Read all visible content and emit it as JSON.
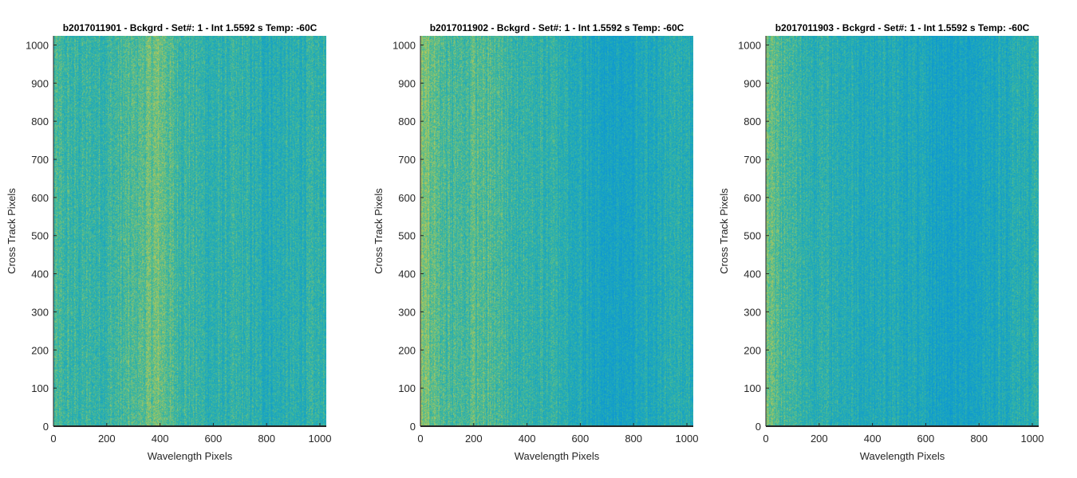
{
  "chart_data": [
    {
      "type": "heatmap",
      "title": "b2017011901 - Bckgrd - Set#: 1 - Int 1.5592 s Temp: -60C",
      "xlabel": "Wavelength Pixels",
      "ylabel": "Cross Track Pixels",
      "xlim": [
        0,
        1024
      ],
      "ylim": [
        0,
        1024
      ],
      "xticks": [
        0,
        200,
        400,
        600,
        800,
        1000
      ],
      "yticks": [
        0,
        100,
        200,
        300,
        400,
        500,
        600,
        700,
        800,
        900,
        1000
      ],
      "column_profile": {
        "x": [
          0,
          40,
          100,
          200,
          300,
          380,
          410,
          450,
          520,
          600,
          700,
          800,
          900,
          1000,
          1024
        ],
        "level": [
          0.55,
          0.5,
          0.48,
          0.5,
          0.58,
          0.72,
          0.7,
          0.56,
          0.5,
          0.42,
          0.44,
          0.38,
          0.4,
          0.45,
          0.46
        ]
      }
    },
    {
      "type": "heatmap",
      "title": "b2017011902 - Bckgrd - Set#: 1 - Int 1.5592 s Temp: -60C",
      "xlabel": "Wavelength Pixels",
      "ylabel": "Cross Track Pixels",
      "xlim": [
        0,
        1024
      ],
      "ylim": [
        0,
        1024
      ],
      "xticks": [
        0,
        200,
        400,
        600,
        800,
        1000
      ],
      "yticks": [
        0,
        100,
        200,
        300,
        400,
        500,
        600,
        700,
        800,
        900,
        1000
      ],
      "column_profile": {
        "x": [
          0,
          30,
          80,
          150,
          200,
          260,
          350,
          450,
          550,
          620,
          700,
          780,
          850,
          950,
          1024
        ],
        "level": [
          0.8,
          0.72,
          0.6,
          0.55,
          0.62,
          0.58,
          0.5,
          0.45,
          0.42,
          0.3,
          0.22,
          0.25,
          0.32,
          0.38,
          0.36
        ]
      }
    },
    {
      "type": "heatmap",
      "title": "b2017011903 - Bckgrd - Set#: 1 - Int 1.5592 s Temp: -60C",
      "xlabel": "Wavelength Pixels",
      "ylabel": "Cross Track Pixels",
      "xlim": [
        0,
        1024
      ],
      "ylim": [
        0,
        1024
      ],
      "xticks": [
        0,
        200,
        400,
        600,
        800,
        1000
      ],
      "yticks": [
        0,
        100,
        200,
        300,
        400,
        500,
        600,
        700,
        800,
        900,
        1000
      ],
      "column_profile": {
        "x": [
          0,
          30,
          80,
          150,
          250,
          350,
          450,
          550,
          650,
          720,
          800,
          900,
          1000,
          1024
        ],
        "level": [
          0.78,
          0.65,
          0.52,
          0.45,
          0.4,
          0.35,
          0.34,
          0.3,
          0.22,
          0.2,
          0.26,
          0.34,
          0.42,
          0.44
        ]
      }
    }
  ]
}
